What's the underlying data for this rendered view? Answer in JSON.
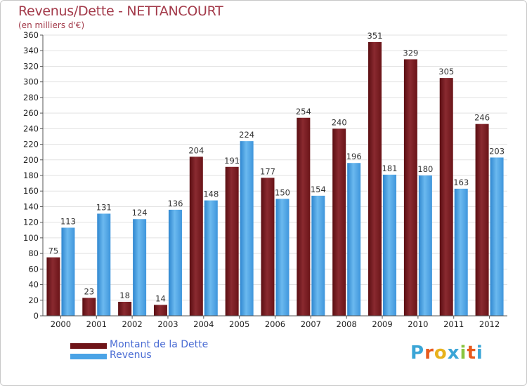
{
  "header": {
    "title": "Revenus/Dette - NETTANCOURT",
    "subtitle": "(en milliers d'€)"
  },
  "legend": {
    "items": [
      {
        "label": "Montant de la Dette",
        "color": "#6e1418"
      },
      {
        "label": "Revenus",
        "color": "#4aa3e6"
      }
    ]
  },
  "logo": {
    "text": "Proxiti",
    "colors": [
      "#3aa5d6",
      "#e85a1c",
      "#e8b21c",
      "#3aa5d6",
      "#8ac43f",
      "#e85a1c",
      "#3aa5d6"
    ]
  },
  "chart_data": {
    "type": "bar",
    "categories": [
      "2000",
      "2001",
      "2002",
      "2003",
      "2004",
      "2005",
      "2006",
      "2007",
      "2008",
      "2009",
      "2010",
      "2011",
      "2012"
    ],
    "series": [
      {
        "name": "Montant de la Dette",
        "values": [
          75,
          23,
          18,
          14,
          204,
          191,
          177,
          254,
          240,
          351,
          329,
          305,
          246
        ],
        "color": "#7a1e24"
      },
      {
        "name": "Revenus",
        "values": [
          113,
          131,
          124,
          136,
          148,
          224,
          150,
          154,
          196,
          181,
          180,
          163,
          203
        ],
        "color": "#4aa3e6"
      }
    ],
    "ylim": [
      0,
      360
    ],
    "ytick_step": 20,
    "grid": true
  }
}
